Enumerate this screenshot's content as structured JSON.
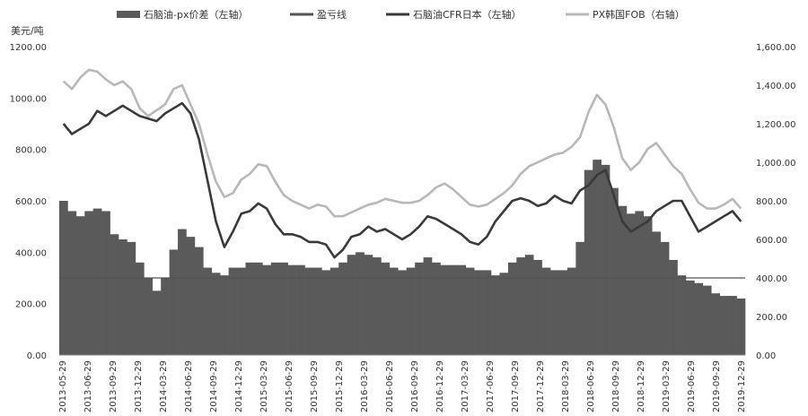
{
  "chart_data": {
    "type": "bar",
    "title": "",
    "unit_label": "美元/吨",
    "grid": false,
    "legend_position": "top",
    "colors": {
      "spread_bars": "#5a5a5a",
      "breakeven": "#555555",
      "naphtha_line": "#3a3a3a",
      "px_line": "#b8b8b8"
    },
    "left_axis": {
      "ylim": [
        0,
        1200
      ],
      "ticks": [
        "0.00",
        "200.00",
        "400.00",
        "600.00",
        "800.00",
        "1000.00",
        "1200.00"
      ]
    },
    "right_axis": {
      "ylim": [
        0,
        1600
      ],
      "ticks": [
        "0.00",
        "200.00",
        "400.00",
        "600.00",
        "800.00",
        "1,000.00",
        "1,200.00",
        "1,400.00",
        "1,600.00"
      ]
    },
    "x_tick_labels": [
      "2013-05-29",
      "2013-06-29",
      "2013-09-29",
      "2013-12-29",
      "2014-03-29",
      "2014-06-29",
      "2014-09-29",
      "2014-12-29",
      "2015-03-29",
      "2015-06-29",
      "2015-09-29",
      "2015-12-29",
      "2016-03-29",
      "2016-06-29",
      "2016-09-29",
      "2016-12-29",
      "2017-03-29",
      "2017-06-29",
      "2017-09-29",
      "2017-12-29",
      "2018-03-29",
      "2018-06-29",
      "2018-09-29",
      "2018-12-29",
      "2019-03-29",
      "2019-06-29",
      "2019-09-29",
      "2019-12-29"
    ],
    "x": [
      "2013-05",
      "2013-06",
      "2013-07",
      "2013-08",
      "2013-09",
      "2013-10",
      "2013-11",
      "2013-12",
      "2014-01",
      "2014-02",
      "2014-03",
      "2014-04",
      "2014-05",
      "2014-06",
      "2014-07",
      "2014-08",
      "2014-09",
      "2014-10",
      "2014-11",
      "2014-12",
      "2015-01",
      "2015-02",
      "2015-03",
      "2015-04",
      "2015-05",
      "2015-06",
      "2015-07",
      "2015-08",
      "2015-09",
      "2015-10",
      "2015-11",
      "2015-12",
      "2016-01",
      "2016-02",
      "2016-03",
      "2016-04",
      "2016-05",
      "2016-06",
      "2016-07",
      "2016-08",
      "2016-09",
      "2016-10",
      "2016-11",
      "2016-12",
      "2017-01",
      "2017-02",
      "2017-03",
      "2017-04",
      "2017-05",
      "2017-06",
      "2017-07",
      "2017-08",
      "2017-09",
      "2017-10",
      "2017-11",
      "2017-12",
      "2018-01",
      "2018-02",
      "2018-03",
      "2018-04",
      "2018-05",
      "2018-06",
      "2018-07",
      "2018-08",
      "2018-09",
      "2018-10",
      "2018-11",
      "2018-12",
      "2019-01",
      "2019-02",
      "2019-03",
      "2019-04",
      "2019-05",
      "2019-06",
      "2019-07",
      "2019-08",
      "2019-09",
      "2019-10",
      "2019-11",
      "2019-12",
      "2020-01"
    ],
    "series": [
      {
        "name": "石脑油-px价差（左轴）",
        "type": "bar",
        "axis": "left",
        "values": [
          600,
          560,
          540,
          560,
          570,
          560,
          470,
          450,
          440,
          360,
          300,
          250,
          300,
          410,
          490,
          460,
          420,
          340,
          320,
          310,
          340,
          340,
          360,
          360,
          350,
          360,
          360,
          350,
          350,
          340,
          340,
          330,
          340,
          360,
          390,
          400,
          390,
          380,
          360,
          340,
          330,
          340,
          360,
          380,
          360,
          350,
          350,
          350,
          340,
          330,
          330,
          310,
          320,
          360,
          380,
          390,
          370,
          340,
          330,
          330,
          340,
          440,
          720,
          760,
          740,
          650,
          580,
          550,
          560,
          540,
          480,
          440,
          370,
          310,
          290,
          280,
          270,
          240,
          230,
          230,
          220
        ]
      },
      {
        "name": "盈亏线",
        "type": "line",
        "axis": "left",
        "values": [
          300,
          300,
          300,
          300,
          300,
          300,
          300,
          300,
          300,
          300,
          300,
          300,
          300,
          300,
          300,
          300,
          300,
          300,
          300,
          300,
          300,
          300,
          300,
          300,
          300,
          300,
          300,
          300,
          300,
          300,
          300,
          300,
          300,
          300,
          300,
          300,
          300,
          300,
          300,
          300,
          300,
          300,
          300,
          300,
          300,
          300,
          300,
          300,
          300,
          300,
          300,
          300,
          300,
          300,
          300,
          300,
          300,
          300,
          300,
          300,
          300,
          300,
          300,
          300,
          300,
          300,
          300,
          300,
          300,
          300,
          300,
          300,
          300,
          300,
          300,
          300,
          300,
          300,
          300,
          300,
          300
        ]
      },
      {
        "name": "石脑油CFR日本（左轴）",
        "type": "line",
        "axis": "left",
        "values": [
          900,
          860,
          880,
          900,
          950,
          930,
          950,
          970,
          950,
          930,
          920,
          910,
          940,
          960,
          980,
          940,
          840,
          680,
          520,
          420,
          480,
          550,
          560,
          590,
          570,
          510,
          470,
          470,
          460,
          440,
          440,
          430,
          380,
          410,
          460,
          470,
          500,
          480,
          490,
          470,
          450,
          470,
          500,
          540,
          530,
          510,
          490,
          470,
          440,
          430,
          460,
          520,
          560,
          600,
          610,
          600,
          580,
          590,
          620,
          600,
          590,
          640,
          660,
          700,
          720,
          620,
          520,
          480,
          500,
          520,
          560,
          580,
          600,
          600,
          540,
          480,
          500,
          520,
          540,
          560,
          520
        ]
      },
      {
        "name": "PX韩国FOB（右轴）",
        "type": "line",
        "axis": "right",
        "values": [
          1420,
          1380,
          1440,
          1480,
          1470,
          1430,
          1400,
          1420,
          1380,
          1280,
          1240,
          1270,
          1300,
          1380,
          1400,
          1300,
          1200,
          1040,
          900,
          820,
          840,
          910,
          940,
          990,
          980,
          900,
          830,
          800,
          780,
          760,
          780,
          770,
          720,
          720,
          740,
          760,
          780,
          790,
          810,
          800,
          790,
          790,
          800,
          830,
          870,
          890,
          860,
          820,
          780,
          770,
          780,
          810,
          840,
          880,
          940,
          980,
          1000,
          1020,
          1040,
          1050,
          1080,
          1130,
          1260,
          1350,
          1300,
          1180,
          1020,
          960,
          1000,
          1070,
          1100,
          1040,
          980,
          940,
          860,
          790,
          760,
          760,
          780,
          810,
          760
        ]
      }
    ]
  }
}
